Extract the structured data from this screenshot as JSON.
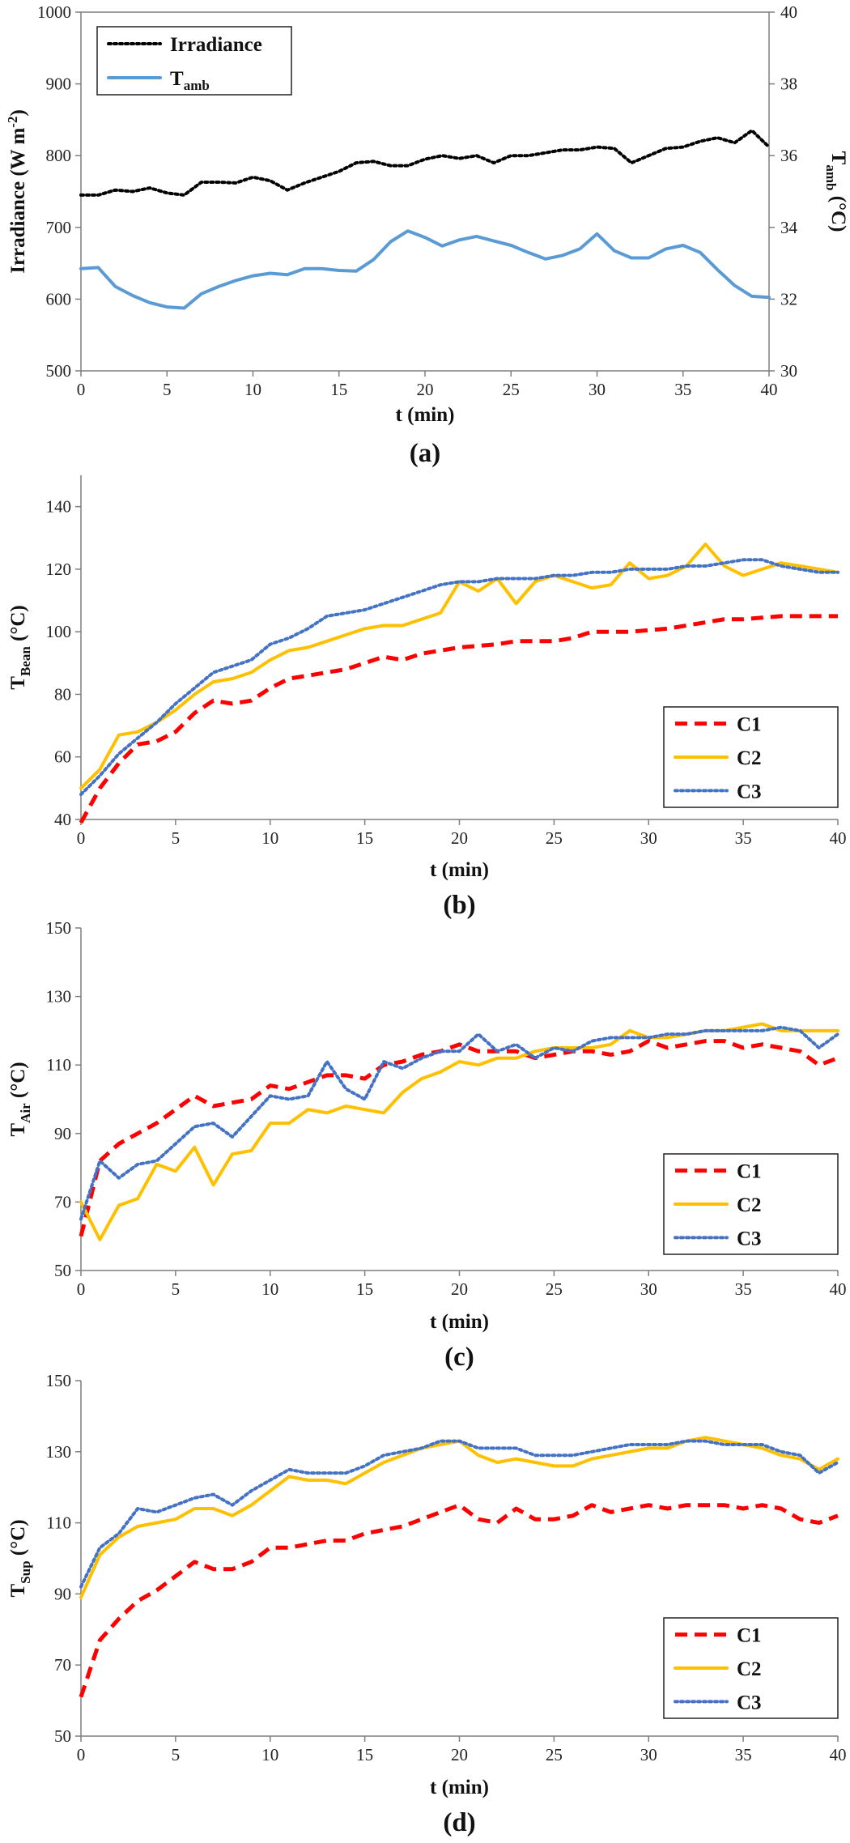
{
  "colors": {
    "irradiance": "#000000",
    "tamb": "#5b9bd5",
    "C1": "#ff0000",
    "C2": "#ffc000",
    "C3": "#4472c4"
  },
  "chart_data": [
    {
      "id": "a",
      "type": "line",
      "panel_label": "(a)",
      "xlabel": "t (min)",
      "ylabel": "Irradiance (W m",
      "ylabel_sup": "-2",
      "ylabel_end": ")",
      "y2label": "T",
      "y2label_sub": "amb",
      "y2label_end": " (°C)",
      "xlim": [
        0,
        40
      ],
      "xticks": [
        0,
        5,
        10,
        15,
        20,
        25,
        30,
        35,
        40
      ],
      "ylim": [
        500,
        1000
      ],
      "yticks": [
        500,
        600,
        700,
        800,
        900,
        1000
      ],
      "y2lim": [
        30,
        40
      ],
      "y2ticks": [
        30,
        32,
        34,
        36,
        38,
        40
      ],
      "legend_position": "top-left",
      "x": [
        0,
        1,
        2,
        3,
        4,
        5,
        6,
        7,
        8,
        9,
        10,
        11,
        12,
        13,
        14,
        15,
        16,
        17,
        18,
        19,
        20,
        21,
        22,
        23,
        24,
        25,
        26,
        27,
        28,
        29,
        30,
        31,
        32,
        33,
        34,
        35,
        36,
        37,
        38,
        39,
        40
      ],
      "series": [
        {
          "name": "Irradiance",
          "axis": "left",
          "style": "dotted",
          "color_key": "irradiance",
          "values": [
            745,
            745,
            752,
            750,
            755,
            748,
            745,
            763,
            763,
            762,
            770,
            765,
            752,
            762,
            770,
            778,
            790,
            792,
            786,
            786,
            795,
            800,
            796,
            800,
            790,
            800,
            800,
            804,
            808,
            808,
            812,
            810,
            790,
            800,
            810,
            812,
            820,
            825,
            818,
            835,
            812
          ]
        },
        {
          "name": "T",
          "name_sub": "amb",
          "axis": "right",
          "style": "solid",
          "color_key": "tamb",
          "values": [
            32.85,
            32.88,
            32.35,
            32.1,
            31.9,
            31.78,
            31.75,
            32.15,
            32.35,
            32.52,
            32.65,
            32.72,
            32.68,
            32.85,
            32.85,
            32.8,
            32.78,
            33.1,
            33.6,
            33.9,
            33.72,
            33.48,
            33.65,
            33.75,
            33.62,
            33.5,
            33.3,
            33.12,
            33.22,
            33.4,
            33.82,
            33.35,
            33.15,
            33.15,
            33.4,
            33.5,
            33.3,
            32.82,
            32.38,
            32.08,
            32.05
          ]
        }
      ]
    },
    {
      "id": "b",
      "type": "line",
      "panel_label": "(b)",
      "xlabel": "t (min)",
      "ylabel": "T",
      "ylabel_sub": "Bean",
      "ylabel_end": " (°C)",
      "xlim": [
        0,
        40
      ],
      "xticks": [
        0,
        5,
        10,
        15,
        20,
        25,
        30,
        35,
        40
      ],
      "ylim": [
        40,
        150
      ],
      "yticks": [
        40,
        60,
        80,
        100,
        120,
        140
      ],
      "legend_position": "bottom-right",
      "x": [
        0,
        1,
        2,
        3,
        4,
        5,
        6,
        7,
        8,
        9,
        10,
        11,
        12,
        13,
        14,
        15,
        16,
        17,
        18,
        19,
        20,
        21,
        22,
        23,
        24,
        25,
        26,
        27,
        28,
        29,
        30,
        31,
        32,
        33,
        34,
        35,
        36,
        37,
        38,
        39,
        40
      ],
      "series": [
        {
          "name": "C1",
          "style": "dashed",
          "color_key": "C1",
          "values": [
            39,
            50,
            58,
            64,
            65,
            68,
            74,
            78,
            77,
            78,
            82,
            85,
            86,
            87,
            88,
            90,
            92,
            91,
            93,
            94,
            95,
            95.5,
            96,
            97,
            97,
            97,
            98,
            100,
            100,
            100,
            100.5,
            101,
            102,
            103,
            104,
            104,
            104.5,
            105,
            105,
            105,
            105
          ]
        },
        {
          "name": "C2",
          "style": "solid",
          "color_key": "C2",
          "values": [
            50,
            56,
            67,
            68,
            71,
            75,
            80,
            84,
            85,
            87,
            91,
            94,
            95,
            97,
            99,
            101,
            102,
            102,
            104,
            106,
            116,
            113,
            117,
            109,
            116,
            118,
            116,
            114,
            115,
            122,
            117,
            118,
            121,
            128,
            121,
            118,
            120,
            122,
            121,
            120,
            119
          ]
        },
        {
          "name": "C3",
          "style": "dotted",
          "color_key": "C3",
          "values": [
            48,
            54,
            61,
            66,
            71,
            77,
            82,
            87,
            89,
            91,
            96,
            98,
            101,
            105,
            106,
            107,
            109,
            111,
            113,
            115,
            116,
            116,
            117,
            117,
            117,
            118,
            118,
            119,
            119,
            120,
            120,
            120,
            121,
            121,
            122,
            123,
            123,
            121,
            120,
            119,
            119
          ]
        }
      ]
    },
    {
      "id": "c",
      "type": "line",
      "panel_label": "(c)",
      "xlabel": "t (min)",
      "ylabel": "T",
      "ylabel_sub": "Air",
      "ylabel_end": " (°C)",
      "xlim": [
        0,
        40
      ],
      "xticks": [
        0,
        5,
        10,
        15,
        20,
        25,
        30,
        35,
        40
      ],
      "ylim": [
        50,
        150
      ],
      "yticks": [
        50,
        70,
        90,
        110,
        130,
        150
      ],
      "legend_position": "bottom-right",
      "x": [
        0,
        1,
        2,
        3,
        4,
        5,
        6,
        7,
        8,
        9,
        10,
        11,
        12,
        13,
        14,
        15,
        16,
        17,
        18,
        19,
        20,
        21,
        22,
        23,
        24,
        25,
        26,
        27,
        28,
        29,
        30,
        31,
        32,
        33,
        34,
        35,
        36,
        37,
        38,
        39,
        40
      ],
      "series": [
        {
          "name": "C1",
          "style": "dashed",
          "color_key": "C1",
          "values": [
            60,
            82,
            87,
            90,
            93,
            97,
            101,
            98,
            99,
            100,
            104,
            103,
            105,
            107,
            107,
            106,
            110,
            111,
            113,
            114,
            116,
            114,
            114,
            114,
            112,
            113,
            114,
            114,
            113,
            114,
            117,
            115,
            116,
            117,
            117,
            115,
            116,
            115,
            114,
            110,
            112
          ]
        },
        {
          "name": "C2",
          "style": "solid",
          "color_key": "C2",
          "values": [
            70,
            59,
            69,
            71,
            81,
            79,
            86,
            75,
            84,
            85,
            93,
            93,
            97,
            96,
            98,
            97,
            96,
            102,
            106,
            108,
            111,
            110,
            112,
            112,
            114,
            115,
            115,
            115,
            116,
            120,
            118,
            118,
            119,
            120,
            120,
            121,
            122,
            120,
            120,
            120,
            120
          ]
        },
        {
          "name": "C3",
          "style": "dotted",
          "color_key": "C3",
          "values": [
            65,
            82,
            77,
            81,
            82,
            87,
            92,
            93,
            89,
            95,
            101,
            100,
            101,
            111,
            103,
            100,
            111,
            109,
            112,
            114,
            114,
            119,
            114,
            116,
            112,
            115,
            114,
            117,
            118,
            118,
            118,
            119,
            119,
            120,
            120,
            120,
            120,
            121,
            120,
            115,
            119
          ]
        }
      ]
    },
    {
      "id": "d",
      "type": "line",
      "panel_label": "(d)",
      "xlabel": "t (min)",
      "ylabel": "T",
      "ylabel_sub": "Sup",
      "ylabel_end": " (°C)",
      "xlim": [
        0,
        40
      ],
      "xticks": [
        0,
        5,
        10,
        15,
        20,
        25,
        30,
        35,
        40
      ],
      "ylim": [
        50,
        150
      ],
      "yticks": [
        50,
        70,
        90,
        110,
        130,
        150
      ],
      "legend_position": "bottom-right",
      "x": [
        0,
        1,
        2,
        3,
        4,
        5,
        6,
        7,
        8,
        9,
        10,
        11,
        12,
        13,
        14,
        15,
        16,
        17,
        18,
        19,
        20,
        21,
        22,
        23,
        24,
        25,
        26,
        27,
        28,
        29,
        30,
        31,
        32,
        33,
        34,
        35,
        36,
        37,
        38,
        39,
        40
      ],
      "series": [
        {
          "name": "C1",
          "style": "dashed",
          "color_key": "C1",
          "values": [
            61,
            77,
            83,
            88,
            91,
            95,
            99,
            97,
            97,
            99,
            103,
            103,
            104,
            105,
            105,
            107,
            108,
            109,
            111,
            113,
            115,
            111,
            110,
            114,
            111,
            111,
            112,
            115,
            113,
            114,
            115,
            114,
            115,
            115,
            115,
            114,
            115,
            114,
            111,
            110,
            112
          ]
        },
        {
          "name": "C2",
          "style": "solid",
          "color_key": "C2",
          "values": [
            89,
            101,
            106,
            109,
            110,
            111,
            114,
            114,
            112,
            115,
            119,
            123,
            122,
            122,
            121,
            124,
            127,
            129,
            131,
            132,
            133,
            129,
            127,
            128,
            127,
            126,
            126,
            128,
            129,
            130,
            131,
            131,
            133,
            134,
            133,
            132,
            131,
            129,
            128,
            125,
            128
          ]
        },
        {
          "name": "C3",
          "style": "dotted",
          "color_key": "C3",
          "values": [
            92,
            103,
            107,
            114,
            113,
            115,
            117,
            118,
            115,
            119,
            122,
            125,
            124,
            124,
            124,
            126,
            129,
            130,
            131,
            133,
            133,
            131,
            131,
            131,
            129,
            129,
            129,
            130,
            131,
            132,
            132,
            132,
            133,
            133,
            132,
            132,
            132,
            130,
            129,
            124,
            127
          ]
        }
      ]
    }
  ]
}
